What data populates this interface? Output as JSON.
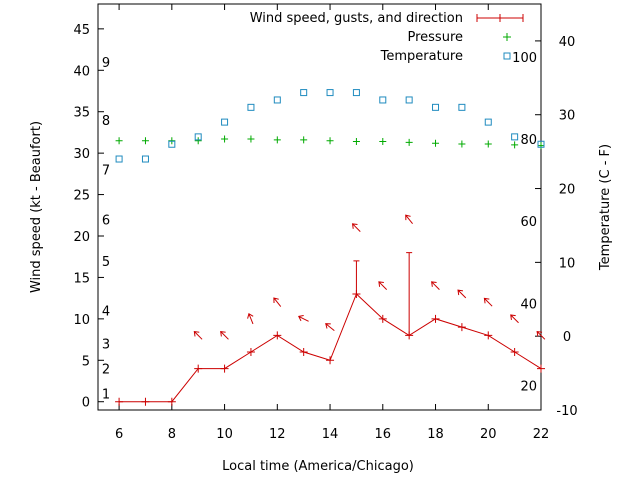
{
  "chart_data": {
    "type": "line",
    "title": "",
    "xlabel": "Local time (America/Chicago)",
    "ylabel": "Wind speed (kt - Beaufort)",
    "y2label": "Temperature (C - F)",
    "xlim": [
      5.2,
      22
    ],
    "ylim": [
      -1,
      48
    ],
    "y2lim": [
      -10,
      45
    ],
    "x_ticks": [
      6,
      8,
      10,
      12,
      14,
      16,
      18,
      20,
      22
    ],
    "y_ticks": [
      0,
      5,
      10,
      15,
      20,
      25,
      30,
      35,
      40,
      45
    ],
    "y2_ticks": [
      -10,
      0,
      10,
      20,
      30,
      40
    ],
    "beaufort_labels": [
      {
        "label": "1",
        "kt": 1
      },
      {
        "label": "2",
        "kt": 4
      },
      {
        "label": "3",
        "kt": 7
      },
      {
        "label": "4",
        "kt": 11
      },
      {
        "label": "5",
        "kt": 17
      },
      {
        "label": "6",
        "kt": 22
      },
      {
        "label": "7",
        "kt": 28
      },
      {
        "label": "8",
        "kt": 34
      },
      {
        "label": "9",
        "kt": 41
      }
    ],
    "fahrenheit_labels": [
      {
        "label": "20",
        "c": -6.7
      },
      {
        "label": "40",
        "c": 4.4
      },
      {
        "label": "60",
        "c": 15.6
      },
      {
        "label": "80",
        "c": 26.7
      },
      {
        "label": "100",
        "c": 37.8
      }
    ],
    "legend_position": "top-right",
    "series": [
      {
        "name": "Wind speed, gusts, and direction",
        "color": "#cc0000",
        "x": [
          6,
          7,
          8,
          9,
          10,
          11,
          12,
          13,
          14,
          15,
          16,
          17,
          18,
          19,
          20,
          21,
          22
        ],
        "values": [
          0,
          0,
          0,
          4,
          4,
          6,
          8,
          6,
          5,
          13,
          10,
          8,
          10,
          9,
          8,
          6,
          4
        ],
        "gusts": [
          {
            "x": 15,
            "low": 13,
            "high": 17
          },
          {
            "x": 17,
            "low": 8,
            "high": 18
          }
        ]
      },
      {
        "name": "Pressure",
        "color": "#00aa00",
        "x": [
          6,
          7,
          8,
          9,
          10,
          11,
          12,
          13,
          14,
          15,
          16,
          17,
          18,
          19,
          20,
          21,
          22
        ],
        "values": [
          31.5,
          31.5,
          31.5,
          31.5,
          31.7,
          31.7,
          31.6,
          31.6,
          31.5,
          31.4,
          31.4,
          31.3,
          31.2,
          31.1,
          31.1,
          31.0,
          30.9
        ]
      },
      {
        "name": "Temperature",
        "color": "#1f8bbf",
        "axis": "y2",
        "x": [
          6,
          7,
          8,
          9,
          10,
          11,
          12,
          13,
          14,
          15,
          16,
          17,
          18,
          19,
          20,
          21,
          22
        ],
        "values": [
          24,
          24,
          26,
          27,
          29,
          31,
          32,
          33,
          33,
          33,
          32,
          32,
          31,
          31,
          29,
          27,
          26
        ]
      }
    ],
    "wind_direction_arrows": [
      {
        "x": 9,
        "kt": 8,
        "dx": -1,
        "dy": 1
      },
      {
        "x": 10,
        "kt": 8,
        "dx": -1,
        "dy": 1
      },
      {
        "x": 11,
        "kt": 10,
        "dx": -0.4,
        "dy": 1
      },
      {
        "x": 12,
        "kt": 12,
        "dx": -0.8,
        "dy": 1
      },
      {
        "x": 13,
        "kt": 10,
        "dx": -1,
        "dy": 0.5
      },
      {
        "x": 14,
        "kt": 9,
        "dx": -1,
        "dy": 0.8
      },
      {
        "x": 15,
        "kt": 21,
        "dx": -1,
        "dy": 1
      },
      {
        "x": 16,
        "kt": 14,
        "dx": -1,
        "dy": 1
      },
      {
        "x": 17,
        "kt": 22,
        "dx": -0.8,
        "dy": 1
      },
      {
        "x": 18,
        "kt": 14,
        "dx": -1,
        "dy": 1
      },
      {
        "x": 19,
        "kt": 13,
        "dx": -1,
        "dy": 1
      },
      {
        "x": 20,
        "kt": 12,
        "dx": -1,
        "dy": 1
      },
      {
        "x": 21,
        "kt": 10,
        "dx": -1,
        "dy": 1
      },
      {
        "x": 22,
        "kt": 8,
        "dx": -1,
        "dy": 1
      }
    ]
  }
}
